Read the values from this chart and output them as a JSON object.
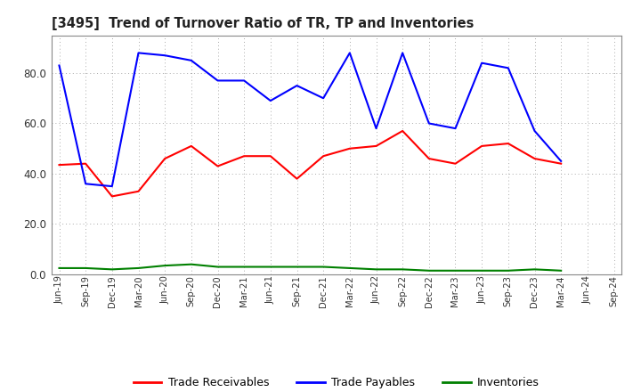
{
  "title": "[3495]  Trend of Turnover Ratio of TR, TP and Inventories",
  "x_labels": [
    "Jun-19",
    "Sep-19",
    "Dec-19",
    "Mar-20",
    "Jun-20",
    "Sep-20",
    "Dec-20",
    "Mar-21",
    "Jun-21",
    "Sep-21",
    "Dec-21",
    "Mar-22",
    "Jun-22",
    "Sep-22",
    "Dec-22",
    "Mar-23",
    "Jun-23",
    "Sep-23",
    "Dec-23",
    "Mar-24",
    "Jun-24",
    "Sep-24"
  ],
  "trade_receivables": [
    43.5,
    44.0,
    31.0,
    33.0,
    46.0,
    51.0,
    43.0,
    47.0,
    47.0,
    38.0,
    47.0,
    50.0,
    51.0,
    57.0,
    46.0,
    44.0,
    51.0,
    52.0,
    46.0,
    44.0,
    null,
    null
  ],
  "trade_payables": [
    83.0,
    36.0,
    35.0,
    88.0,
    87.0,
    85.0,
    77.0,
    77.0,
    69.0,
    75.0,
    70.0,
    88.0,
    58.0,
    88.0,
    60.0,
    58.0,
    84.0,
    82.0,
    57.0,
    45.0,
    null,
    null
  ],
  "inventories": [
    2.5,
    2.5,
    2.0,
    2.5,
    3.5,
    4.0,
    3.0,
    3.0,
    3.0,
    3.0,
    3.0,
    2.5,
    2.0,
    2.0,
    1.5,
    1.5,
    1.5,
    1.5,
    2.0,
    1.5,
    null,
    null
  ],
  "ylim": [
    0,
    95
  ],
  "yticks": [
    0.0,
    20.0,
    40.0,
    60.0,
    80.0
  ],
  "color_tr": "#FF0000",
  "color_tp": "#0000FF",
  "color_inv": "#008000",
  "bg_color": "#FFFFFF",
  "grid_color": "#AAAAAA",
  "legend_labels": [
    "Trade Receivables",
    "Trade Payables",
    "Inventories"
  ]
}
